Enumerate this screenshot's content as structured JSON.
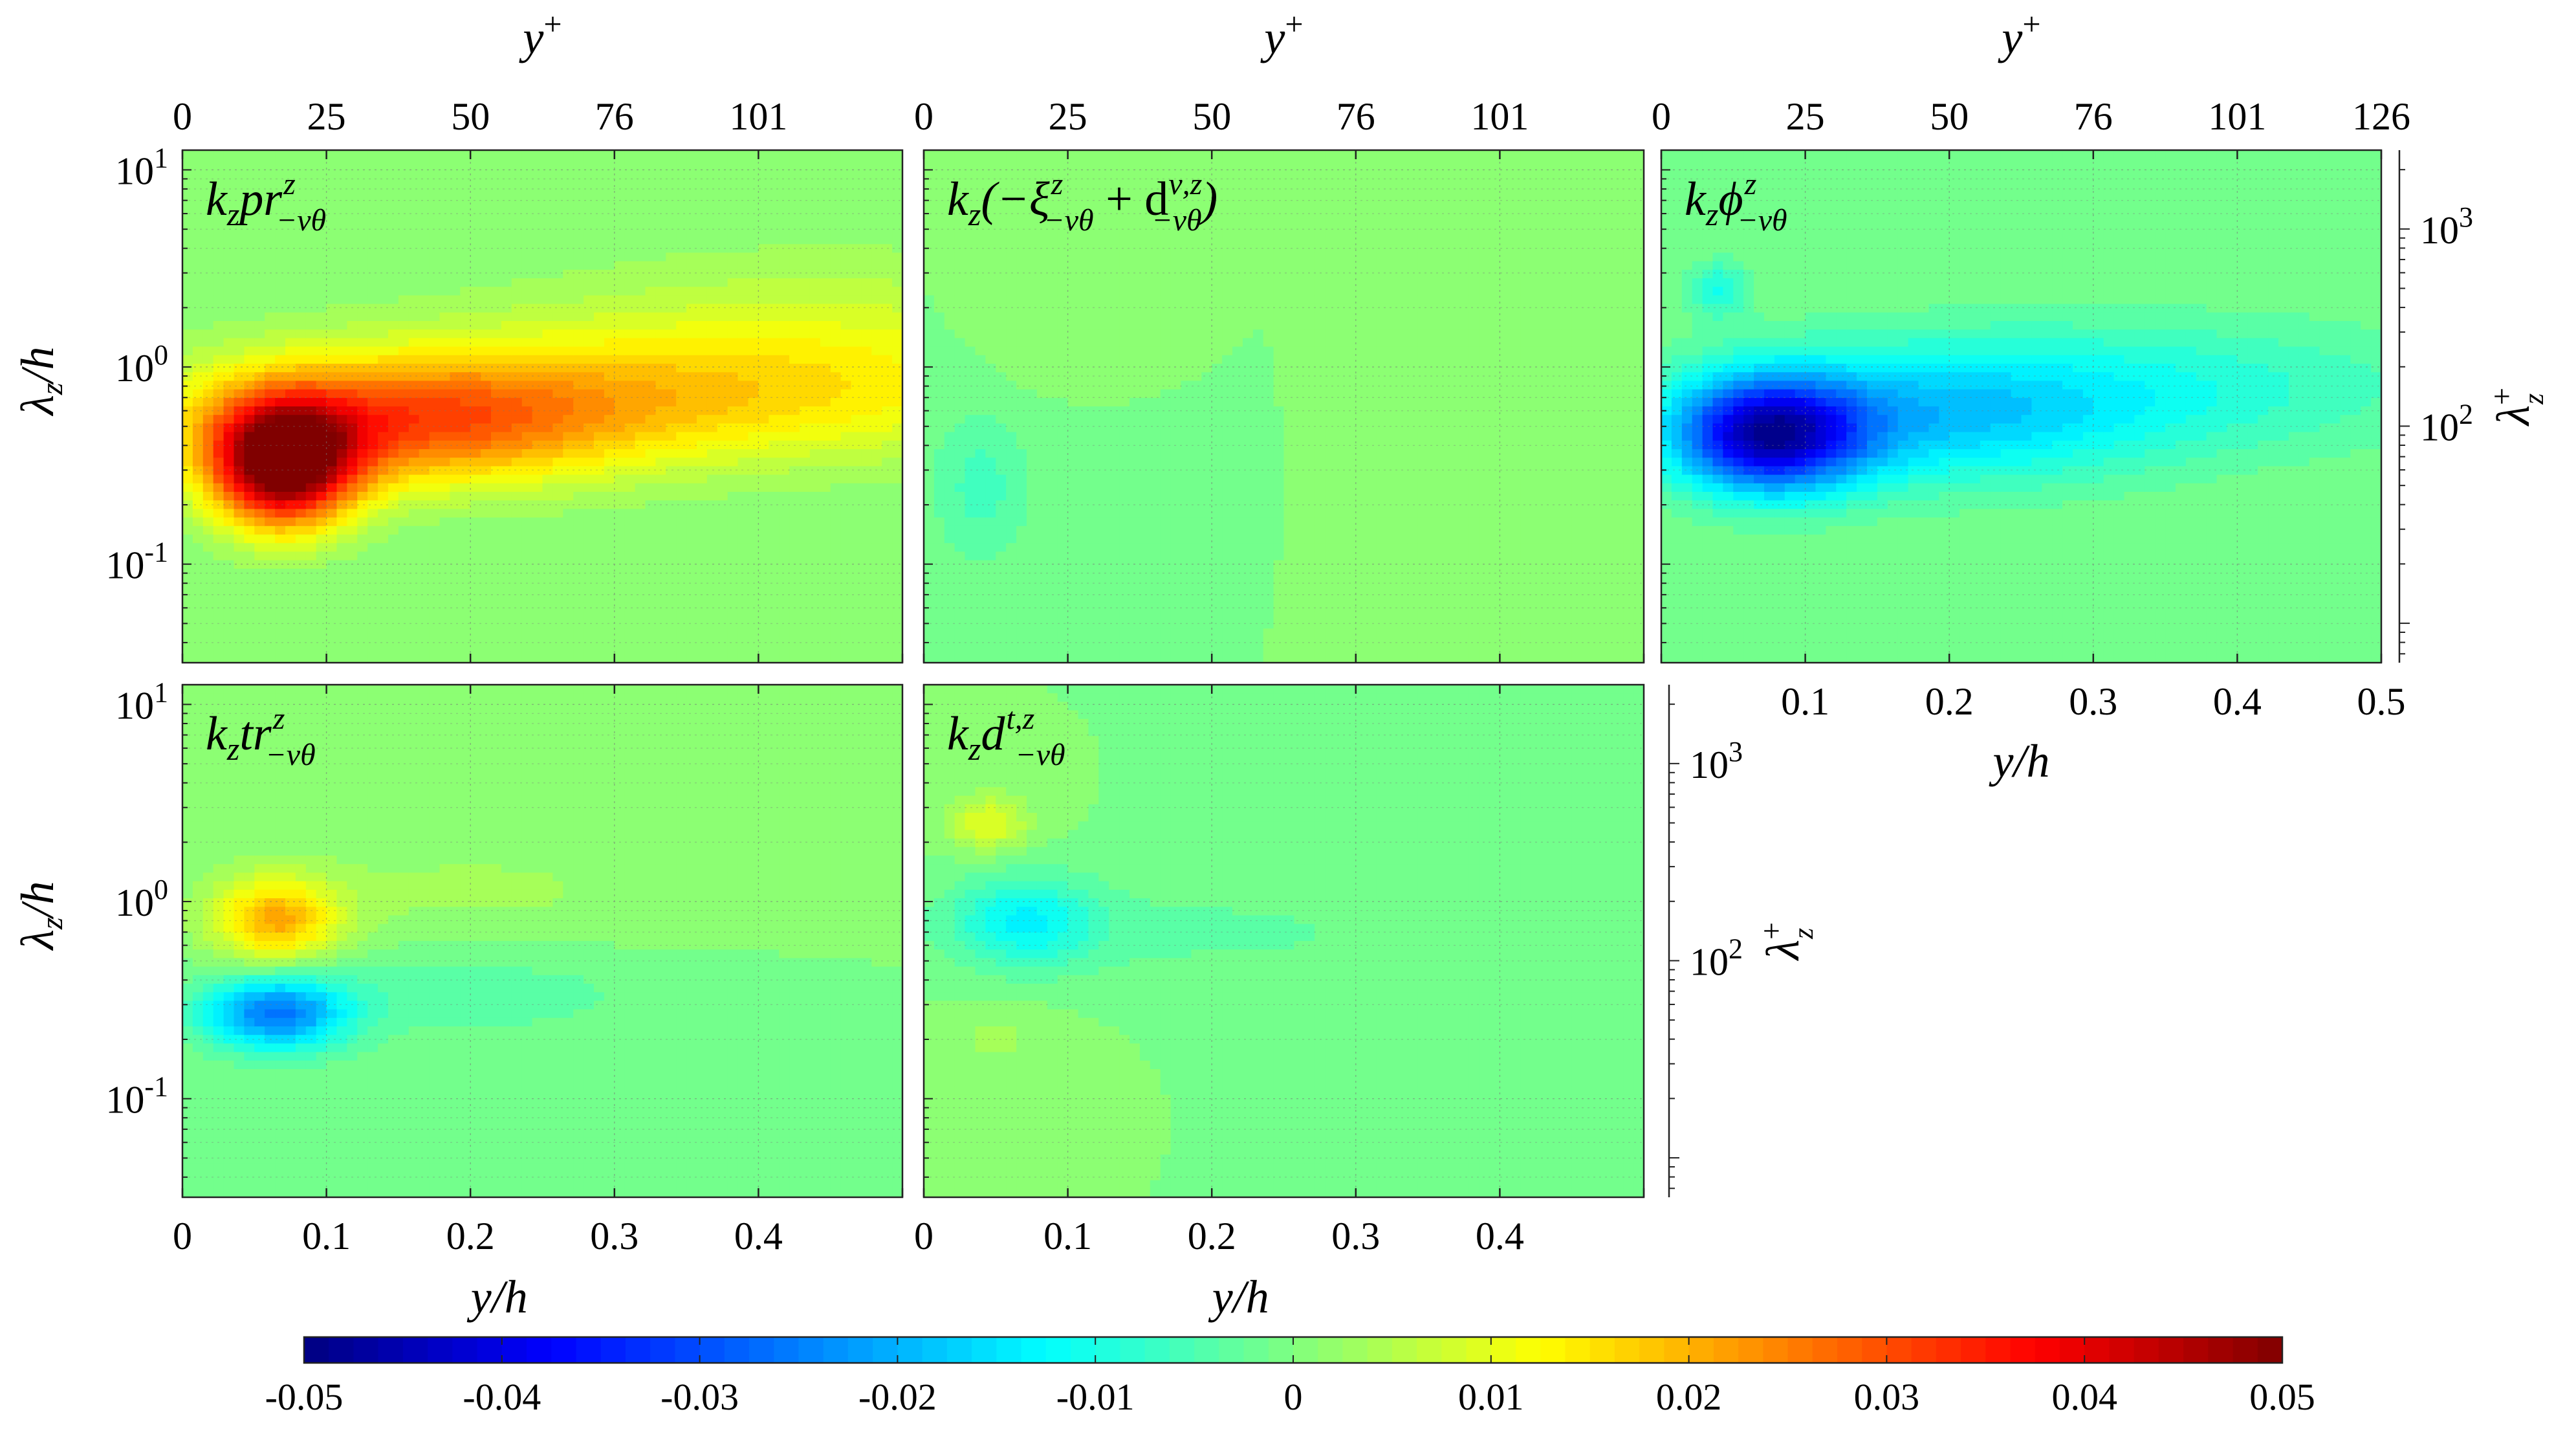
{
  "chart_data": {
    "type": "heatmap",
    "panels": [
      {
        "id": "pr",
        "title_main": "k",
        "title_sub1": "z",
        "title_mid": "pr",
        "title_sup": "z",
        "title_sub2": "−vθ",
        "title_pre": "",
        "title_post": ""
      },
      {
        "id": "xi",
        "title_main": "k",
        "title_sub1": "z",
        "title_mid": "(−ξ",
        "title_sup": "z",
        "title_sub2": "−vθ",
        "title_pre": "",
        "title_post": " + d",
        "title_sup2": "ν,z",
        "title_sub3": "−vθ",
        "title_end": ")"
      },
      {
        "id": "phi",
        "title_main": "k",
        "title_sub1": "z",
        "title_mid": "ϕ",
        "title_sup": "z",
        "title_sub2": "−vθ",
        "title_pre": "",
        "title_post": ""
      },
      {
        "id": "tr",
        "title_main": "k",
        "title_sub1": "z",
        "title_mid": "tr",
        "title_sup": "z",
        "title_sub2": "−vθ",
        "title_pre": "",
        "title_post": ""
      },
      {
        "id": "dt",
        "title_main": "k",
        "title_sub1": "z",
        "title_mid": "d",
        "title_sup": "t,z",
        "title_sub2": "−vθ",
        "title_pre": "",
        "title_post": ""
      }
    ],
    "x_bottom_label": "y/h",
    "x_bottom_ticks": [
      "0",
      "0.1",
      "0.2",
      "0.3",
      "0.4"
    ],
    "x_bottom_ticks_phi": [
      "0.1",
      "0.2",
      "0.3",
      "0.4",
      "0.5"
    ],
    "x_top_label": "y",
    "x_top_label_sup": "+",
    "x_top_ticks": [
      "0",
      "25",
      "50",
      "76",
      "101"
    ],
    "x_top_ticks_phi": [
      "0",
      "25",
      "50",
      "76",
      "101",
      "126"
    ],
    "xlim": [
      0,
      0.5
    ],
    "y_left_label": "λ",
    "y_left_label_sub": "z",
    "y_left_label_post": "/h",
    "y_left_ticks": [
      {
        "base": "10",
        "exp": "1",
        "value": 10
      },
      {
        "base": "10",
        "exp": "0",
        "value": 1
      },
      {
        "base": "10",
        "exp": "-1",
        "value": 0.1
      }
    ],
    "y_right_label": "λ",
    "y_right_label_sup": "+",
    "y_right_label_sub": "z",
    "y_right_ticks": [
      {
        "base": "10",
        "exp": "3",
        "value": 1000
      },
      {
        "base": "10",
        "exp": "2",
        "value": 100
      }
    ],
    "ylim_log10": [
      -1.5,
      1.1
    ],
    "y_scale": "log",
    "grid": true,
    "colormap": "jet",
    "colorbar": {
      "range": [
        -0.05,
        0.05
      ],
      "ticks": [
        "-0.05",
        "-0.04",
        "-0.03",
        "-0.02",
        "-0.01",
        "0",
        "0.01",
        "0.02",
        "0.03",
        "0.04",
        "0.05"
      ],
      "orientation": "horizontal",
      "placement": "bottom"
    },
    "features": {
      "pr": [
        {
          "y": 0.07,
          "lam": 0.32,
          "amp": 0.052,
          "sy": 0.035,
          "sl": 0.22
        },
        {
          "y": 0.15,
          "lam": 0.5,
          "amp": 0.022,
          "sy": 0.1,
          "sl": 0.22
        },
        {
          "y": 0.32,
          "lam": 0.7,
          "amp": 0.015,
          "sy": 0.2,
          "sl": 0.25
        },
        {
          "y": 0.45,
          "lam": 1.6,
          "amp": 0.006,
          "sy": 0.15,
          "sl": 0.3
        }
      ],
      "xi": [
        {
          "y": 0.04,
          "lam": 0.25,
          "amp": -0.006,
          "sy": 0.025,
          "sl": 0.28
        },
        {
          "y": 0.07,
          "lam": 1.6,
          "amp": 0.002,
          "sy": 0.02,
          "sl": 0.2
        }
      ],
      "phi": [
        {
          "y": 0.075,
          "lam": 0.45,
          "amp": -0.04,
          "sy": 0.045,
          "sl": 0.2
        },
        {
          "y": 0.18,
          "lam": 0.55,
          "amp": -0.015,
          "sy": 0.11,
          "sl": 0.25
        },
        {
          "y": 0.35,
          "lam": 0.8,
          "amp": -0.008,
          "sy": 0.15,
          "sl": 0.25
        },
        {
          "y": 0.04,
          "lam": 2.5,
          "amp": -0.01,
          "sy": 0.015,
          "sl": 0.1
        }
      ],
      "tr": [
        {
          "y": 0.065,
          "lam": 0.8,
          "amp": 0.02,
          "sy": 0.03,
          "sl": 0.15
        },
        {
          "y": 0.065,
          "lam": 0.27,
          "amp": -0.025,
          "sy": 0.035,
          "sl": 0.13
        },
        {
          "y": 0.2,
          "lam": 0.35,
          "amp": -0.004,
          "sy": 0.1,
          "sl": 0.18
        },
        {
          "y": 0.2,
          "lam": 1.1,
          "amp": 0.003,
          "sy": 0.12,
          "sl": 0.22
        }
      ],
      "dt": [
        {
          "y": 0.045,
          "lam": 2.5,
          "amp": 0.01,
          "sy": 0.02,
          "sl": 0.1
        },
        {
          "y": 0.07,
          "lam": 0.8,
          "amp": -0.012,
          "sy": 0.035,
          "sl": 0.16
        },
        {
          "y": 0.2,
          "lam": 0.7,
          "amp": -0.003,
          "sy": 0.12,
          "sl": 0.18
        },
        {
          "y": 0.05,
          "lam": 0.2,
          "amp": 0.003,
          "sy": 0.03,
          "sl": 0.12
        }
      ]
    }
  }
}
